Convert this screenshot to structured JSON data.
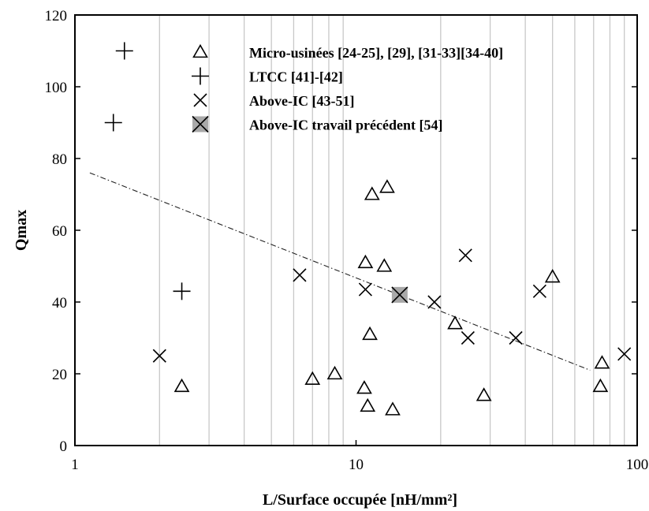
{
  "chart_data": {
    "type": "scatter",
    "title": "",
    "xlabel": "L/Surface occupée [nH/mm²]",
    "ylabel": "Qmax",
    "xscale": "log",
    "xlim": [
      1,
      100
    ],
    "ylim": [
      0,
      120
    ],
    "xticks": [
      1,
      10,
      100
    ],
    "xtick_labels": [
      "1",
      "10",
      "100"
    ],
    "yticks": [
      0,
      20,
      40,
      60,
      80,
      100,
      120
    ],
    "ytick_labels": [
      "0",
      "20",
      "40",
      "60",
      "80",
      "100",
      "120"
    ],
    "grid": "vertical minor lines",
    "legend_position": "top",
    "series": [
      {
        "name": "Micro-usinées [24-25], [29], [31-33][34-40]",
        "marker": "triangle",
        "points": [
          [
            2.4,
            16.5
          ],
          [
            7.0,
            18.5
          ],
          [
            8.4,
            20
          ],
          [
            10.7,
            16
          ],
          [
            11.0,
            11
          ],
          [
            13.5,
            10
          ],
          [
            10.8,
            51
          ],
          [
            11.2,
            31
          ],
          [
            11.4,
            70
          ],
          [
            12.6,
            50
          ],
          [
            12.9,
            72
          ],
          [
            22.5,
            34
          ],
          [
            28.5,
            14
          ],
          [
            50,
            47
          ],
          [
            74,
            16.5
          ],
          [
            75,
            23
          ]
        ]
      },
      {
        "name": "LTCC [41]-[42]",
        "marker": "plus",
        "points": [
          [
            1.5,
            110
          ],
          [
            1.37,
            90
          ],
          [
            2.4,
            43
          ]
        ]
      },
      {
        "name": "Above-IC [43-51]",
        "marker": "cross",
        "points": [
          [
            2.0,
            25
          ],
          [
            6.3,
            47.5
          ],
          [
            10.8,
            43.5
          ],
          [
            19,
            40
          ],
          [
            24.5,
            53
          ],
          [
            25,
            30
          ],
          [
            37,
            30
          ],
          [
            45,
            43
          ],
          [
            90,
            25.5
          ]
        ]
      },
      {
        "name": "Above-IC travail précédent [54]",
        "marker": "cross-boxed",
        "points": [
          [
            14.3,
            42
          ]
        ]
      }
    ],
    "trendline": {
      "style": "dash-dot",
      "points": [
        [
          1.13,
          76
        ],
        [
          68,
          21
        ]
      ]
    }
  }
}
